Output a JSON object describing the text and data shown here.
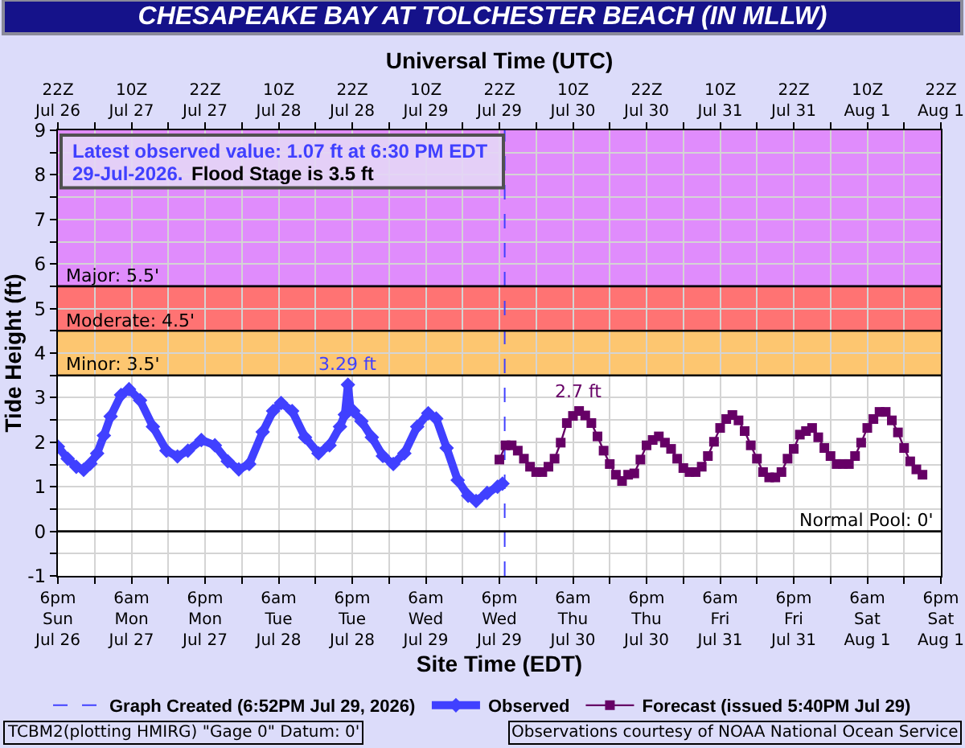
{
  "chart_data": {
    "type": "line",
    "title": "CHESAPEAKE BAY AT TOLCHESTER BEACH (IN MLLW)",
    "xlabel": "Site Time (EDT)",
    "x2label": "Universal Time (UTC)",
    "ylabel": "Tide Height (ft)",
    "xlim": [
      "2026-07-26T18:00",
      "2026-08-01T18:00"
    ],
    "xticks": [
      {
        "value": "2026-07-26T18:00",
        "label": "6pm\nSun\nJul 26"
      },
      {
        "value": "2026-07-27T00:00",
        "label": null
      },
      {
        "value": "2026-07-27T06:00",
        "label": "6am\nMon\nJul 27"
      },
      {
        "value": "2026-07-27T12:00",
        "label": null
      },
      {
        "value": "2026-07-27T18:00",
        "label": "6pm\nMon\nJul 27"
      },
      {
        "value": "2026-07-28T00:00",
        "label": null
      },
      {
        "value": "2026-07-28T06:00",
        "label": "6am\nTue\nJul 28"
      },
      {
        "value": "2026-07-28T12:00",
        "label": null
      },
      {
        "value": "2026-07-28T18:00",
        "label": "6pm\nTue\nJul 28"
      },
      {
        "value": "2026-07-29T00:00",
        "label": null
      },
      {
        "value": "2026-07-29T06:00",
        "label": "6am\nWed\nJul 29"
      },
      {
        "value": "2026-07-29T12:00",
        "label": null
      },
      {
        "value": "2026-07-29T18:00",
        "label": "6pm\nWed\nJul 29"
      },
      {
        "value": "2026-07-30T00:00",
        "label": null
      },
      {
        "value": "2026-07-30T06:00",
        "label": "6am\nThu\nJul 30"
      },
      {
        "value": "2026-07-30T12:00",
        "label": null
      },
      {
        "value": "2026-07-30T18:00",
        "label": "6pm\nThu\nJul 30"
      },
      {
        "value": "2026-07-31T00:00",
        "label": null
      },
      {
        "value": "2026-07-31T06:00",
        "label": "6am\nFri\nJul 31"
      },
      {
        "value": "2026-07-31T12:00",
        "label": null
      },
      {
        "value": "2026-07-31T18:00",
        "label": "6pm\nFri\nJul 31"
      },
      {
        "value": "2026-08-01T00:00",
        "label": null
      },
      {
        "value": "2026-08-01T06:00",
        "label": "6am\nSat\nAug 1"
      },
      {
        "value": "2026-08-01T12:00",
        "label": null
      },
      {
        "value": "2026-08-01T18:00",
        "label": "6pm\nSat\nAug 1"
      }
    ],
    "x2lim": [
      "2026-07-26T22:00",
      "2026-08-01T22:00"
    ],
    "x2ticks": [
      {
        "value": "2026-07-26T22:00",
        "label": "22Z\nJul 26"
      },
      {
        "value": "2026-07-27T04:00",
        "label": null
      },
      {
        "value": "2026-07-27T10:00",
        "label": "10Z\nJul 27"
      },
      {
        "value": "2026-07-27T16:00",
        "label": null
      },
      {
        "value": "2026-07-27T22:00",
        "label": "22Z\nJul 27"
      },
      {
        "value": "2026-07-28T04:00",
        "label": null
      },
      {
        "value": "2026-07-28T10:00",
        "label": "10Z\nJul 28"
      },
      {
        "value": "2026-07-28T16:00",
        "label": null
      },
      {
        "value": "2026-07-28T22:00",
        "label": "22Z\nJul 28"
      },
      {
        "value": "2026-07-29T04:00",
        "label": null
      },
      {
        "value": "2026-07-29T10:00",
        "label": "10Z\nJul 29"
      },
      {
        "value": "2026-07-29T16:00",
        "label": null
      },
      {
        "value": "2026-07-29T22:00",
        "label": "22Z\nJul 29"
      },
      {
        "value": "2026-07-30T04:00",
        "label": null
      },
      {
        "value": "2026-07-30T10:00",
        "label": "10Z\nJul 30"
      },
      {
        "value": "2026-07-30T16:00",
        "label": null
      },
      {
        "value": "2026-07-30T22:00",
        "label": "22Z\nJul 30"
      },
      {
        "value": "2026-07-31T04:00",
        "label": null
      },
      {
        "value": "2026-07-31T10:00",
        "label": "10Z\nJul 31"
      },
      {
        "value": "2026-07-31T16:00",
        "label": null
      },
      {
        "value": "2026-07-31T22:00",
        "label": "22Z\nJul 31"
      },
      {
        "value": "2026-08-01T04:00",
        "label": null
      },
      {
        "value": "2026-08-01T10:00",
        "label": "10Z\nAug 1"
      },
      {
        "value": "2026-08-01T16:00",
        "label": null
      },
      {
        "value": "2026-08-01T22:00",
        "label": "22Z\nAug 1"
      }
    ],
    "ylim": [
      -1,
      9
    ],
    "yticks": [
      -1,
      {
        "value": -0.5,
        "label": null
      },
      0,
      {
        "value": 0.5,
        "label": null
      },
      1,
      {
        "value": 1.5,
        "label": null
      },
      2,
      {
        "value": 2.5,
        "label": null
      },
      3,
      {
        "value": 3.5,
        "label": null
      },
      4,
      {
        "value": 4.5,
        "label": null
      },
      5,
      {
        "value": 5.5,
        "label": null
      },
      6,
      {
        "value": 6.5,
        "label": null
      },
      7,
      {
        "value": 7.5,
        "label": null
      },
      8,
      {
        "value": 8.5,
        "label": null
      },
      9
    ],
    "grid": true,
    "legend": "bottom",
    "bands": [
      {
        "axis": "y",
        "from": 3.5,
        "to": 4.5,
        "label": "Minor: 3.5'",
        "color": "#fdc670"
      },
      {
        "axis": "y",
        "from": 4.5,
        "to": 5.5,
        "label": "Moderate: 4.5'",
        "color": "#ff7373"
      },
      {
        "axis": "y",
        "from": 5.5,
        "to": 9,
        "label": "Major: 5.5'",
        "color": "#e08cfc"
      }
    ],
    "ref_lines": [
      {
        "axis": "y",
        "value": 0,
        "label": "Normal Pool: 0'",
        "color": "#000000"
      },
      {
        "axis": "x",
        "value": "2026-07-29T18:52",
        "label": "Graph Created (6:52PM Jul 29, 2026)",
        "color": "#4040ff",
        "line_style": "dashed"
      }
    ],
    "series": [
      {
        "name": "Observed",
        "color": "#4040ff",
        "marker": "diamond",
        "x": [
          "2026-07-26T18:00",
          "2026-07-26T19:36",
          "2026-07-26T21:00",
          "2026-07-26T22:12",
          "2026-07-26T23:18",
          "2026-07-27T00:24",
          "2026-07-27T01:30",
          "2026-07-27T02:36",
          "2026-07-27T04:18",
          "2026-07-27T05:36",
          "2026-07-27T07:24",
          "2026-07-27T09:30",
          "2026-07-27T11:42",
          "2026-07-27T13:30",
          "2026-07-27T15:12",
          "2026-07-27T17:24",
          "2026-07-27T19:36",
          "2026-07-27T21:42",
          "2026-07-27T23:30",
          "2026-07-28T01:12",
          "2026-07-28T03:24",
          "2026-07-28T05:06",
          "2026-07-28T06:24",
          "2026-07-28T08:12",
          "2026-07-28T10:18",
          "2026-07-28T12:30",
          "2026-07-28T14:18",
          "2026-07-28T16:00",
          "2026-07-28T16:48",
          "2026-07-28T17:18",
          "2026-07-28T17:42",
          "2026-07-28T18:12",
          "2026-07-28T19:30",
          "2026-07-28T21:12",
          "2026-07-28T23:00",
          "2026-07-29T00:42",
          "2026-07-29T02:30",
          "2026-07-29T04:36",
          "2026-07-29T06:24",
          "2026-07-29T07:42",
          "2026-07-29T09:24",
          "2026-07-29T11:12",
          "2026-07-29T12:54",
          "2026-07-29T14:12",
          "2026-07-29T16:00",
          "2026-07-29T17:42",
          "2026-07-29T18:30"
        ],
        "values": [
          1.9,
          1.63,
          1.45,
          1.38,
          1.52,
          1.75,
          2.15,
          2.58,
          3.06,
          3.19,
          2.94,
          2.35,
          1.81,
          1.68,
          1.81,
          2.05,
          1.93,
          1.57,
          1.39,
          1.51,
          2.23,
          2.7,
          2.88,
          2.7,
          2.11,
          1.75,
          1.93,
          2.35,
          2.62,
          3.29,
          2.75,
          2.7,
          2.47,
          2.11,
          1.69,
          1.51,
          1.75,
          2.35,
          2.65,
          2.53,
          1.87,
          1.15,
          0.8,
          0.68,
          0.86,
          1.0,
          1.07
        ],
        "value_labels": [
          null,
          null,
          null,
          null,
          null,
          null,
          null,
          null,
          null,
          null,
          null,
          null,
          null,
          null,
          null,
          null,
          null,
          null,
          null,
          null,
          null,
          null,
          null,
          null,
          null,
          null,
          null,
          null,
          null,
          "3.29 ft",
          null,
          null,
          null,
          null,
          null,
          null,
          null,
          null,
          null,
          null,
          null,
          null,
          null,
          null,
          null,
          null,
          null
        ]
      },
      {
        "name": "Forecast (issued 5:40PM Jul 29)",
        "color": "#660066",
        "marker": "square",
        "x": [
          "2026-07-29T18:00",
          "2026-07-29T19:00",
          "2026-07-29T20:00",
          "2026-07-29T21:00",
          "2026-07-29T22:00",
          "2026-07-29T23:00",
          "2026-07-30T00:00",
          "2026-07-30T01:00",
          "2026-07-30T02:00",
          "2026-07-30T03:00",
          "2026-07-30T04:00",
          "2026-07-30T05:00",
          "2026-07-30T06:00",
          "2026-07-30T07:00",
          "2026-07-30T08:00",
          "2026-07-30T09:00",
          "2026-07-30T10:00",
          "2026-07-30T11:00",
          "2026-07-30T12:00",
          "2026-07-30T13:00",
          "2026-07-30T14:00",
          "2026-07-30T15:00",
          "2026-07-30T16:00",
          "2026-07-30T17:00",
          "2026-07-30T18:00",
          "2026-07-30T19:00",
          "2026-07-30T20:00",
          "2026-07-30T21:00",
          "2026-07-30T22:00",
          "2026-07-30T23:00",
          "2026-07-31T00:00",
          "2026-07-31T01:00",
          "2026-07-31T02:00",
          "2026-07-31T03:00",
          "2026-07-31T04:00",
          "2026-07-31T05:00",
          "2026-07-31T06:00",
          "2026-07-31T07:00",
          "2026-07-31T08:00",
          "2026-07-31T09:00",
          "2026-07-31T10:00",
          "2026-07-31T11:00",
          "2026-07-31T12:00",
          "2026-07-31T13:00",
          "2026-07-31T14:00",
          "2026-07-31T15:00",
          "2026-07-31T16:00",
          "2026-07-31T17:00",
          "2026-07-31T18:00",
          "2026-07-31T19:00",
          "2026-07-31T20:00",
          "2026-07-31T21:00",
          "2026-07-31T22:00",
          "2026-07-31T23:00",
          "2026-08-01T00:00",
          "2026-08-01T01:00",
          "2026-08-01T02:00",
          "2026-08-01T03:00",
          "2026-08-01T04:00",
          "2026-08-01T05:00",
          "2026-08-01T06:00",
          "2026-08-01T07:00",
          "2026-08-01T08:00",
          "2026-08-01T09:00",
          "2026-08-01T10:00",
          "2026-08-01T11:00",
          "2026-08-01T12:00",
          "2026-08-01T13:00",
          "2026-08-01T14:00",
          "2026-08-01T15:00"
        ],
        "values": [
          1.61,
          1.93,
          1.93,
          1.81,
          1.63,
          1.45,
          1.33,
          1.33,
          1.45,
          1.63,
          1.99,
          2.43,
          2.59,
          2.7,
          2.6,
          2.43,
          2.13,
          1.81,
          1.51,
          1.27,
          1.13,
          1.27,
          1.3,
          1.61,
          1.93,
          2.05,
          2.13,
          1.99,
          1.85,
          1.63,
          1.42,
          1.33,
          1.33,
          1.45,
          1.69,
          2.01,
          2.32,
          2.52,
          2.61,
          2.49,
          2.25,
          1.93,
          1.63,
          1.33,
          1.21,
          1.21,
          1.33,
          1.63,
          1.85,
          2.17,
          2.25,
          2.32,
          2.11,
          1.87,
          1.69,
          1.51,
          1.51,
          1.51,
          1.69,
          1.99,
          2.32,
          2.52,
          2.68,
          2.68,
          2.49,
          2.22,
          1.87,
          1.57,
          1.39,
          1.27
        ],
        "value_labels": [
          null,
          null,
          null,
          null,
          null,
          null,
          null,
          null,
          null,
          null,
          null,
          null,
          null,
          "2.7 ft",
          null,
          null,
          null,
          null,
          null,
          null,
          null,
          null,
          null,
          null,
          null,
          null,
          null,
          null,
          null,
          null,
          null,
          null,
          null,
          null,
          null,
          null,
          null,
          null,
          null,
          null,
          null,
          null,
          null,
          null,
          null,
          null,
          null,
          null,
          null,
          null,
          null,
          null,
          null,
          null,
          null,
          null,
          null,
          null,
          null,
          null,
          null,
          null,
          null,
          null,
          null,
          null,
          null,
          null,
          null,
          null
        ]
      }
    ],
    "annotations": [
      "Latest observed value: 1.07 ft at 6:30 PM EDT",
      "29-Jul-2026.",
      "Flood Stage is 3.5 ft",
      "TCBM2(plotting HMIRG) \"Gage 0\" Datum: 0'",
      "Observations courtesy of NOAA National Ocean Service"
    ]
  }
}
